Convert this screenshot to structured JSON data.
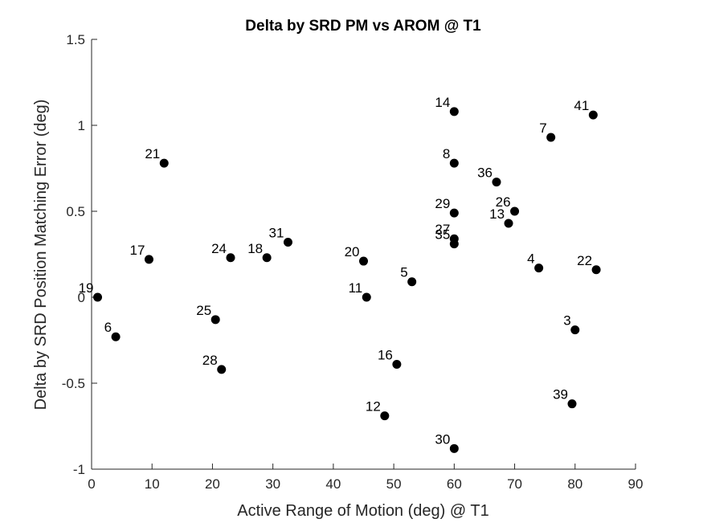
{
  "chart_data": {
    "type": "scatter",
    "title": "Delta by SRD PM vs AROM @ T1",
    "xlabel": "Active Range of Motion (deg) @ T1",
    "ylabel": "Delta by SRD Position Matching Error (deg)",
    "xlim": [
      0,
      90
    ],
    "ylim": [
      -1,
      1.5
    ],
    "xticks": [
      0,
      10,
      20,
      30,
      40,
      50,
      60,
      70,
      80,
      90
    ],
    "yticks": [
      -1,
      -0.5,
      0,
      0.5,
      1,
      1.5
    ],
    "xtick_labels": [
      "0",
      "10",
      "20",
      "30",
      "40",
      "50",
      "60",
      "70",
      "80",
      "90"
    ],
    "ytick_labels": [
      "-1",
      "-0.5",
      "0",
      "0.5",
      "1",
      "1.5"
    ],
    "grid": false,
    "marker_color": "#000000",
    "points": [
      {
        "label": "19",
        "x": 1.0,
        "y": 0.0
      },
      {
        "label": "6",
        "x": 4.0,
        "y": -0.23
      },
      {
        "label": "17",
        "x": 9.5,
        "y": 0.22
      },
      {
        "label": "21",
        "x": 12.0,
        "y": 0.78
      },
      {
        "label": "25",
        "x": 20.5,
        "y": -0.13
      },
      {
        "label": "28",
        "x": 21.5,
        "y": -0.42
      },
      {
        "label": "24",
        "x": 23.0,
        "y": 0.23
      },
      {
        "label": "18",
        "x": 29.0,
        "y": 0.23
      },
      {
        "label": "31",
        "x": 32.5,
        "y": 0.32
      },
      {
        "label": "20",
        "x": 45.0,
        "y": 0.21
      },
      {
        "label": "11",
        "x": 45.5,
        "y": 0.0
      },
      {
        "label": "12",
        "x": 48.5,
        "y": -0.69
      },
      {
        "label": "16",
        "x": 50.5,
        "y": -0.39
      },
      {
        "label": "5",
        "x": 53.0,
        "y": 0.09
      },
      {
        "label": "14",
        "x": 60.0,
        "y": 1.08
      },
      {
        "label": "8",
        "x": 60.0,
        "y": 0.78
      },
      {
        "label": "29",
        "x": 60.0,
        "y": 0.49
      },
      {
        "label": "27",
        "x": 60.0,
        "y": 0.34
      },
      {
        "label": "35",
        "x": 60.0,
        "y": 0.31
      },
      {
        "label": "30",
        "x": 60.0,
        "y": -0.88
      },
      {
        "label": "36",
        "x": 67.0,
        "y": 0.67
      },
      {
        "label": "13",
        "x": 69.0,
        "y": 0.43
      },
      {
        "label": "26",
        "x": 70.0,
        "y": 0.5
      },
      {
        "label": "4",
        "x": 74.0,
        "y": 0.17
      },
      {
        "label": "7",
        "x": 76.0,
        "y": 0.93
      },
      {
        "label": "3",
        "x": 80.0,
        "y": -0.19
      },
      {
        "label": "39",
        "x": 79.5,
        "y": -0.62
      },
      {
        "label": "41",
        "x": 83.0,
        "y": 1.06
      },
      {
        "label": "22",
        "x": 83.5,
        "y": 0.16
      }
    ]
  }
}
